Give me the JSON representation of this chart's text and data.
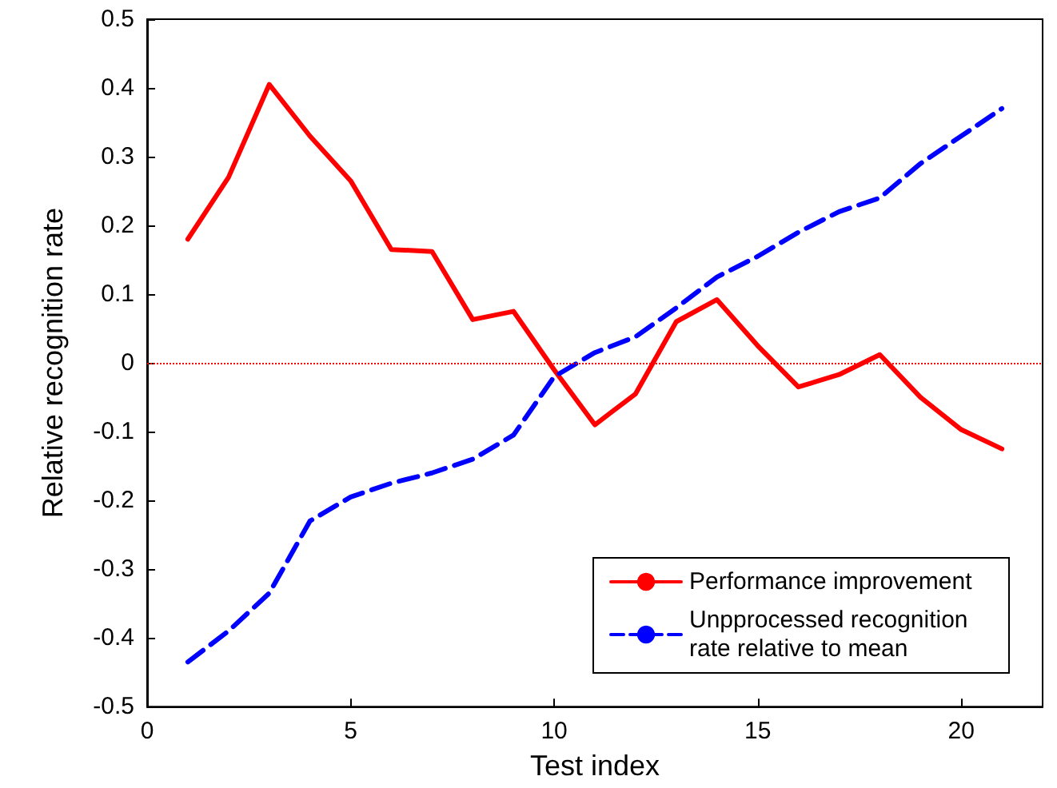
{
  "chart_data": {
    "type": "line",
    "xlabel": "Test index",
    "ylabel": "Relative recognition rate",
    "x": [
      1,
      2,
      3,
      4,
      5,
      6,
      7,
      8,
      9,
      10,
      11,
      12,
      13,
      14,
      15,
      16,
      17,
      18,
      19,
      20,
      21
    ],
    "series": [
      {
        "name": "Performance improvement",
        "color": "#ff0000",
        "line_style": "solid",
        "values": [
          0.18,
          0.27,
          0.405,
          0.33,
          0.265,
          0.165,
          0.162,
          0.063,
          0.075,
          -0.01,
          -0.09,
          -0.045,
          0.06,
          0.092,
          0.025,
          -0.035,
          -0.017,
          0.012,
          -0.05,
          -0.097,
          -0.125
        ]
      },
      {
        "name": "Unpprocessed recognition rate relative to mean",
        "color": "#0000ff",
        "line_style": "dashed",
        "values": [
          -0.435,
          -0.39,
          -0.335,
          -0.23,
          -0.195,
          -0.175,
          -0.16,
          -0.14,
          -0.105,
          -0.02,
          0.015,
          0.038,
          0.08,
          0.125,
          0.155,
          0.19,
          0.22,
          0.24,
          0.29,
          0.33,
          0.37
        ]
      }
    ],
    "ref_lines": [
      {
        "axis": "y",
        "value": 0,
        "color": "#ff0000",
        "line_style": "dotted"
      }
    ],
    "xlim": [
      0,
      22
    ],
    "xticks": [
      0,
      5,
      10,
      15,
      20
    ],
    "ylim": [
      -0.5,
      0.5
    ],
    "yticks": [
      -0.5,
      -0.4,
      -0.3,
      -0.2,
      -0.1,
      0,
      0.1,
      0.2,
      0.3,
      0.4,
      0.5
    ],
    "grid": false,
    "legend": "bottom right",
    "marker": "none"
  }
}
